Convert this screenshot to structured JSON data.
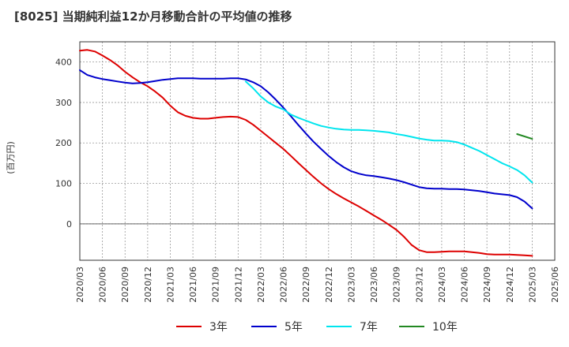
{
  "chart_data": {
    "type": "line",
    "title": "[8025]  当期純利益12か月移動合計の平均値の推移",
    "ylabel": "(百万円)",
    "xlabel": "",
    "ylim": [
      -90,
      450
    ],
    "yticks": [
      0,
      100,
      200,
      300,
      400
    ],
    "x_ticks": [
      "2020/03",
      "2020/06",
      "2020/09",
      "2020/12",
      "2021/03",
      "2021/06",
      "2021/09",
      "2021/12",
      "2022/03",
      "2022/06",
      "2022/09",
      "2022/12",
      "2023/03",
      "2023/06",
      "2023/09",
      "2023/12",
      "2024/03",
      "2024/06",
      "2024/09",
      "2024/12",
      "2025/03",
      "2025/06"
    ],
    "grid": true,
    "legend_position": "bottom",
    "series": [
      {
        "name": "3年",
        "color": "#dd0000",
        "points": [
          [
            "2020/03",
            428
          ],
          [
            "2020/04",
            430
          ],
          [
            "2020/05",
            426
          ],
          [
            "2020/06",
            416
          ],
          [
            "2020/07",
            405
          ],
          [
            "2020/08",
            392
          ],
          [
            "2020/09",
            376
          ],
          [
            "2020/10",
            362
          ],
          [
            "2020/11",
            350
          ],
          [
            "2020/12",
            340
          ],
          [
            "2021/01",
            327
          ],
          [
            "2021/02",
            312
          ],
          [
            "2021/03",
            292
          ],
          [
            "2021/04",
            276
          ],
          [
            "2021/05",
            267
          ],
          [
            "2021/06",
            262
          ],
          [
            "2021/07",
            260
          ],
          [
            "2021/08",
            260
          ],
          [
            "2021/09",
            262
          ],
          [
            "2021/10",
            264
          ],
          [
            "2021/11",
            265
          ],
          [
            "2021/12",
            264
          ],
          [
            "2022/01",
            257
          ],
          [
            "2022/02",
            245
          ],
          [
            "2022/03",
            230
          ],
          [
            "2022/04",
            215
          ],
          [
            "2022/05",
            200
          ],
          [
            "2022/06",
            185
          ],
          [
            "2022/07",
            168
          ],
          [
            "2022/08",
            150
          ],
          [
            "2022/09",
            133
          ],
          [
            "2022/10",
            116
          ],
          [
            "2022/11",
            100
          ],
          [
            "2022/12",
            86
          ],
          [
            "2023/01",
            74
          ],
          [
            "2023/02",
            63
          ],
          [
            "2023/03",
            53
          ],
          [
            "2023/04",
            43
          ],
          [
            "2023/05",
            32
          ],
          [
            "2023/06",
            21
          ],
          [
            "2023/07",
            10
          ],
          [
            "2023/08",
            -2
          ],
          [
            "2023/09",
            -15
          ],
          [
            "2023/10",
            -32
          ],
          [
            "2023/11",
            -52
          ],
          [
            "2023/12",
            -65
          ],
          [
            "2024/01",
            -70
          ],
          [
            "2024/02",
            -70
          ],
          [
            "2024/03",
            -69
          ],
          [
            "2024/04",
            -68
          ],
          [
            "2024/05",
            -68
          ],
          [
            "2024/06",
            -68
          ],
          [
            "2024/07",
            -70
          ],
          [
            "2024/08",
            -72
          ],
          [
            "2024/09",
            -75
          ],
          [
            "2024/10",
            -76
          ],
          [
            "2024/11",
            -76
          ],
          [
            "2024/12",
            -76
          ],
          [
            "2025/01",
            -77
          ],
          [
            "2025/02",
            -78
          ],
          [
            "2025/03",
            -79
          ]
        ]
      },
      {
        "name": "5年",
        "color": "#0000cc",
        "points": [
          [
            "2020/03",
            380
          ],
          [
            "2020/04",
            368
          ],
          [
            "2020/05",
            362
          ],
          [
            "2020/06",
            358
          ],
          [
            "2020/07",
            355
          ],
          [
            "2020/08",
            352
          ],
          [
            "2020/09",
            349
          ],
          [
            "2020/10",
            347
          ],
          [
            "2020/11",
            348
          ],
          [
            "2020/12",
            350
          ],
          [
            "2021/01",
            353
          ],
          [
            "2021/02",
            356
          ],
          [
            "2021/03",
            358
          ],
          [
            "2021/04",
            360
          ],
          [
            "2021/05",
            360
          ],
          [
            "2021/06",
            360
          ],
          [
            "2021/07",
            359
          ],
          [
            "2021/08",
            359
          ],
          [
            "2021/09",
            359
          ],
          [
            "2021/10",
            359
          ],
          [
            "2021/11",
            360
          ],
          [
            "2021/12",
            360
          ],
          [
            "2022/01",
            357
          ],
          [
            "2022/02",
            350
          ],
          [
            "2022/03",
            340
          ],
          [
            "2022/04",
            325
          ],
          [
            "2022/05",
            307
          ],
          [
            "2022/06",
            287
          ],
          [
            "2022/07",
            266
          ],
          [
            "2022/08",
            244
          ],
          [
            "2022/09",
            223
          ],
          [
            "2022/10",
            203
          ],
          [
            "2022/11",
            185
          ],
          [
            "2022/12",
            168
          ],
          [
            "2023/01",
            153
          ],
          [
            "2023/02",
            140
          ],
          [
            "2023/03",
            130
          ],
          [
            "2023/04",
            124
          ],
          [
            "2023/05",
            120
          ],
          [
            "2023/06",
            118
          ],
          [
            "2023/07",
            115
          ],
          [
            "2023/08",
            112
          ],
          [
            "2023/09",
            108
          ],
          [
            "2023/10",
            103
          ],
          [
            "2023/11",
            97
          ],
          [
            "2023/12",
            91
          ],
          [
            "2024/01",
            88
          ],
          [
            "2024/02",
            87
          ],
          [
            "2024/03",
            87
          ],
          [
            "2024/04",
            86
          ],
          [
            "2024/05",
            86
          ],
          [
            "2024/06",
            85
          ],
          [
            "2024/07",
            83
          ],
          [
            "2024/08",
            81
          ],
          [
            "2024/09",
            78
          ],
          [
            "2024/10",
            75
          ],
          [
            "2024/11",
            73
          ],
          [
            "2024/12",
            71
          ],
          [
            "2025/01",
            66
          ],
          [
            "2025/02",
            55
          ],
          [
            "2025/03",
            38
          ]
        ]
      },
      {
        "name": "7年",
        "color": "#00e5ee",
        "points": [
          [
            "2022/01",
            352
          ],
          [
            "2022/02",
            335
          ],
          [
            "2022/03",
            315
          ],
          [
            "2022/04",
            300
          ],
          [
            "2022/05",
            290
          ],
          [
            "2022/06",
            283
          ],
          [
            "2022/07",
            270
          ],
          [
            "2022/08",
            262
          ],
          [
            "2022/09",
            255
          ],
          [
            "2022/10",
            248
          ],
          [
            "2022/11",
            242
          ],
          [
            "2022/12",
            238
          ],
          [
            "2023/01",
            235
          ],
          [
            "2023/02",
            233
          ],
          [
            "2023/03",
            232
          ],
          [
            "2023/04",
            232
          ],
          [
            "2023/05",
            231
          ],
          [
            "2023/06",
            230
          ],
          [
            "2023/07",
            228
          ],
          [
            "2023/08",
            226
          ],
          [
            "2023/09",
            222
          ],
          [
            "2023/10",
            219
          ],
          [
            "2023/11",
            215
          ],
          [
            "2023/12",
            211
          ],
          [
            "2024/01",
            208
          ],
          [
            "2024/02",
            206
          ],
          [
            "2024/03",
            206
          ],
          [
            "2024/04",
            205
          ],
          [
            "2024/05",
            202
          ],
          [
            "2024/06",
            196
          ],
          [
            "2024/07",
            188
          ],
          [
            "2024/08",
            180
          ],
          [
            "2024/09",
            170
          ],
          [
            "2024/10",
            160
          ],
          [
            "2024/11",
            150
          ],
          [
            "2024/12",
            142
          ],
          [
            "2025/01",
            133
          ],
          [
            "2025/02",
            120
          ],
          [
            "2025/03",
            102
          ]
        ]
      },
      {
        "name": "10年",
        "color": "#228822",
        "points": [
          [
            "2025/01",
            222
          ],
          [
            "2025/03",
            210
          ]
        ]
      }
    ]
  }
}
